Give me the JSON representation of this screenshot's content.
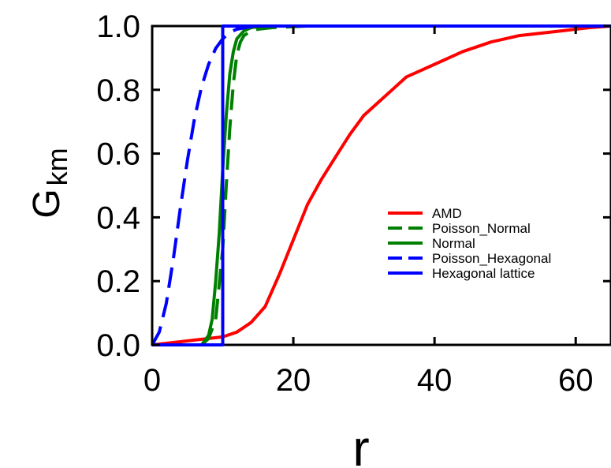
{
  "chart_data": {
    "type": "line",
    "xlabel": "r",
    "ylabel": "G",
    "ylabel_sub": "km",
    "xlim": [
      0,
      65
    ],
    "ylim": [
      0,
      1.0
    ],
    "x_ticks": [
      0,
      20,
      40,
      60
    ],
    "y_ticks": [
      0.0,
      0.2,
      0.4,
      0.6,
      0.8,
      1.0
    ],
    "x_tick_labels": [
      "0",
      "20",
      "40",
      "60"
    ],
    "y_tick_labels": [
      "0.0",
      "0.2",
      "0.4",
      "0.6",
      "0.8",
      "1.0"
    ],
    "legend_position": "center-right",
    "grid": false,
    "series": [
      {
        "name": "AMD",
        "color": "#ff0000",
        "dash": "solid",
        "x": [
          0,
          2,
          4,
          6,
          8,
          10,
          12,
          14,
          16,
          18,
          20,
          22,
          24,
          26,
          28,
          30,
          32,
          34,
          36,
          38,
          40,
          42,
          44,
          46,
          48,
          50,
          52,
          54,
          56,
          58,
          60,
          62,
          65
        ],
        "y": [
          0,
          0.005,
          0.01,
          0.015,
          0.02,
          0.025,
          0.04,
          0.07,
          0.12,
          0.22,
          0.33,
          0.44,
          0.52,
          0.59,
          0.66,
          0.72,
          0.76,
          0.8,
          0.84,
          0.86,
          0.88,
          0.9,
          0.92,
          0.935,
          0.95,
          0.96,
          0.97,
          0.975,
          0.98,
          0.985,
          0.99,
          0.995,
          1.0
        ]
      },
      {
        "name": "Poisson_Normal",
        "color": "#008000",
        "dash": "dashed",
        "x": [
          7,
          8,
          9,
          10,
          10.5,
          11,
          11.5,
          12,
          12.5,
          13,
          14,
          15,
          17,
          20,
          22
        ],
        "y": [
          0,
          0.02,
          0.08,
          0.3,
          0.5,
          0.68,
          0.82,
          0.91,
          0.95,
          0.97,
          0.985,
          0.99,
          0.995,
          0.998,
          1.0
        ]
      },
      {
        "name": "Normal",
        "color": "#008000",
        "dash": "solid",
        "x": [
          7,
          8,
          8.5,
          9,
          9.5,
          10,
          10.5,
          11,
          11.5,
          12,
          13,
          14,
          16
        ],
        "y": [
          0,
          0.03,
          0.08,
          0.2,
          0.35,
          0.55,
          0.72,
          0.85,
          0.92,
          0.96,
          0.985,
          0.995,
          1.0
        ]
      },
      {
        "name": "Poisson_Hexagonal",
        "color": "#0000ff",
        "dash": "dashed",
        "x": [
          0,
          1,
          2,
          3,
          4,
          5,
          6,
          7,
          8,
          9,
          10,
          11,
          12,
          14,
          16
        ],
        "y": [
          0,
          0.04,
          0.13,
          0.27,
          0.43,
          0.58,
          0.71,
          0.81,
          0.88,
          0.93,
          0.96,
          0.98,
          0.99,
          0.998,
          1.0
        ]
      },
      {
        "name": "Hexagonal lattice",
        "color": "#0000ff",
        "dash": "solid",
        "x": [
          0,
          10,
          10,
          65
        ],
        "y": [
          0,
          0,
          1,
          1
        ]
      }
    ]
  }
}
